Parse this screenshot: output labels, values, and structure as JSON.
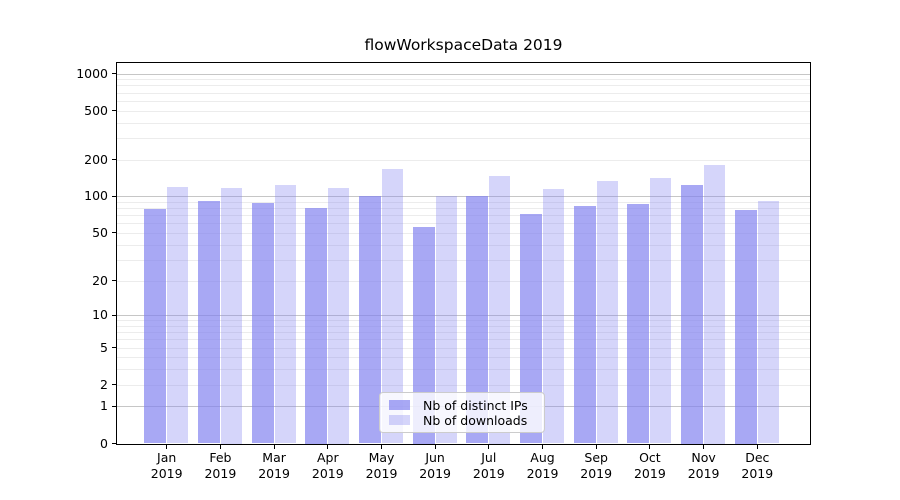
{
  "chart_data": {
    "type": "bar",
    "title": "flowWorkspaceData 2019",
    "x": {
      "months": [
        "Jan",
        "Feb",
        "Mar",
        "Apr",
        "May",
        "Jun",
        "Jul",
        "Aug",
        "Sep",
        "Oct",
        "Nov",
        "Dec"
      ],
      "year": "2019"
    },
    "series": [
      {
        "name": "Nb of distinct IPs",
        "color": "rgba(127,127,239,0.68)",
        "values": [
          79,
          91,
          88,
          81,
          100,
          56,
          101,
          72,
          84,
          86,
          125,
          78
        ]
      },
      {
        "name": "Nb of downloads",
        "color": "rgba(127,127,239,0.33)",
        "values": [
          119,
          117,
          123,
          117,
          168,
          100,
          148,
          115,
          134,
          142,
          182,
          92
        ]
      }
    ],
    "y_axis": {
      "ticks": [
        0,
        1,
        2,
        5,
        10,
        20,
        50,
        100,
        200,
        500,
        1000
      ],
      "scale": "symlog (position ~ ln(1+value), 0 at baseline)",
      "max": 1240
    },
    "grid": {
      "on": true,
      "minor_color": "#ececec",
      "major_color": "#c6c6c6",
      "major_at": [
        1,
        10,
        100,
        1000
      ]
    },
    "legend_position": "lower center, inside plot"
  }
}
